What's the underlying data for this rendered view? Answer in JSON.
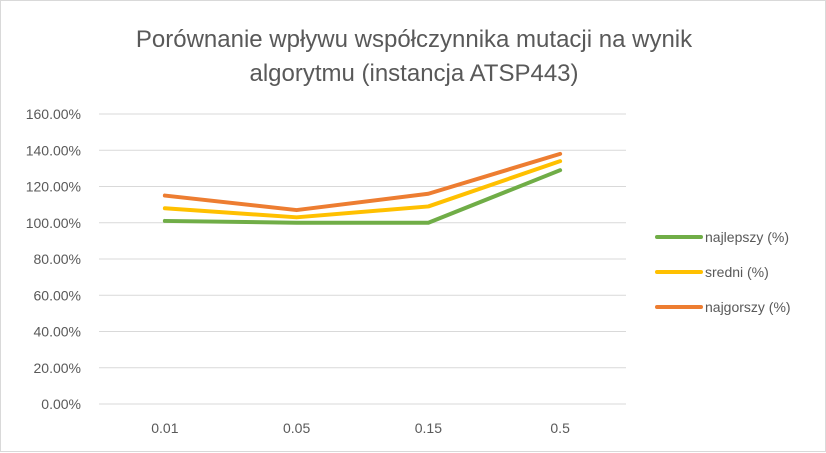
{
  "chart_data": {
    "type": "line",
    "title": "Porównanie wpływu współczynnika mutacji na wynik algorytmu (instancja ATSP443)",
    "title_lines": [
      "Porównanie wpływu współczynnika mutacji na wynik",
      "algorytmu (instancja ATSP443)"
    ],
    "xlabel": "",
    "ylabel": "",
    "categories": [
      "0.01",
      "0.05",
      "0.15",
      "0.5"
    ],
    "y_ticks": [
      "0.00%",
      "20.00%",
      "40.00%",
      "60.00%",
      "80.00%",
      "100.00%",
      "120.00%",
      "140.00%",
      "160.00%"
    ],
    "ylim": [
      0,
      160
    ],
    "grid": true,
    "legend_position": "right",
    "series": [
      {
        "name": "najlepszy (%)",
        "color": "#70ad47",
        "values": [
          101,
          100,
          100,
          129
        ]
      },
      {
        "name": "sredni (%)",
        "color": "#ffc000",
        "values": [
          108,
          103,
          109,
          134
        ]
      },
      {
        "name": "najgorszy (%)",
        "color": "#ed7d31",
        "values": [
          115,
          107,
          116,
          138
        ]
      }
    ]
  }
}
